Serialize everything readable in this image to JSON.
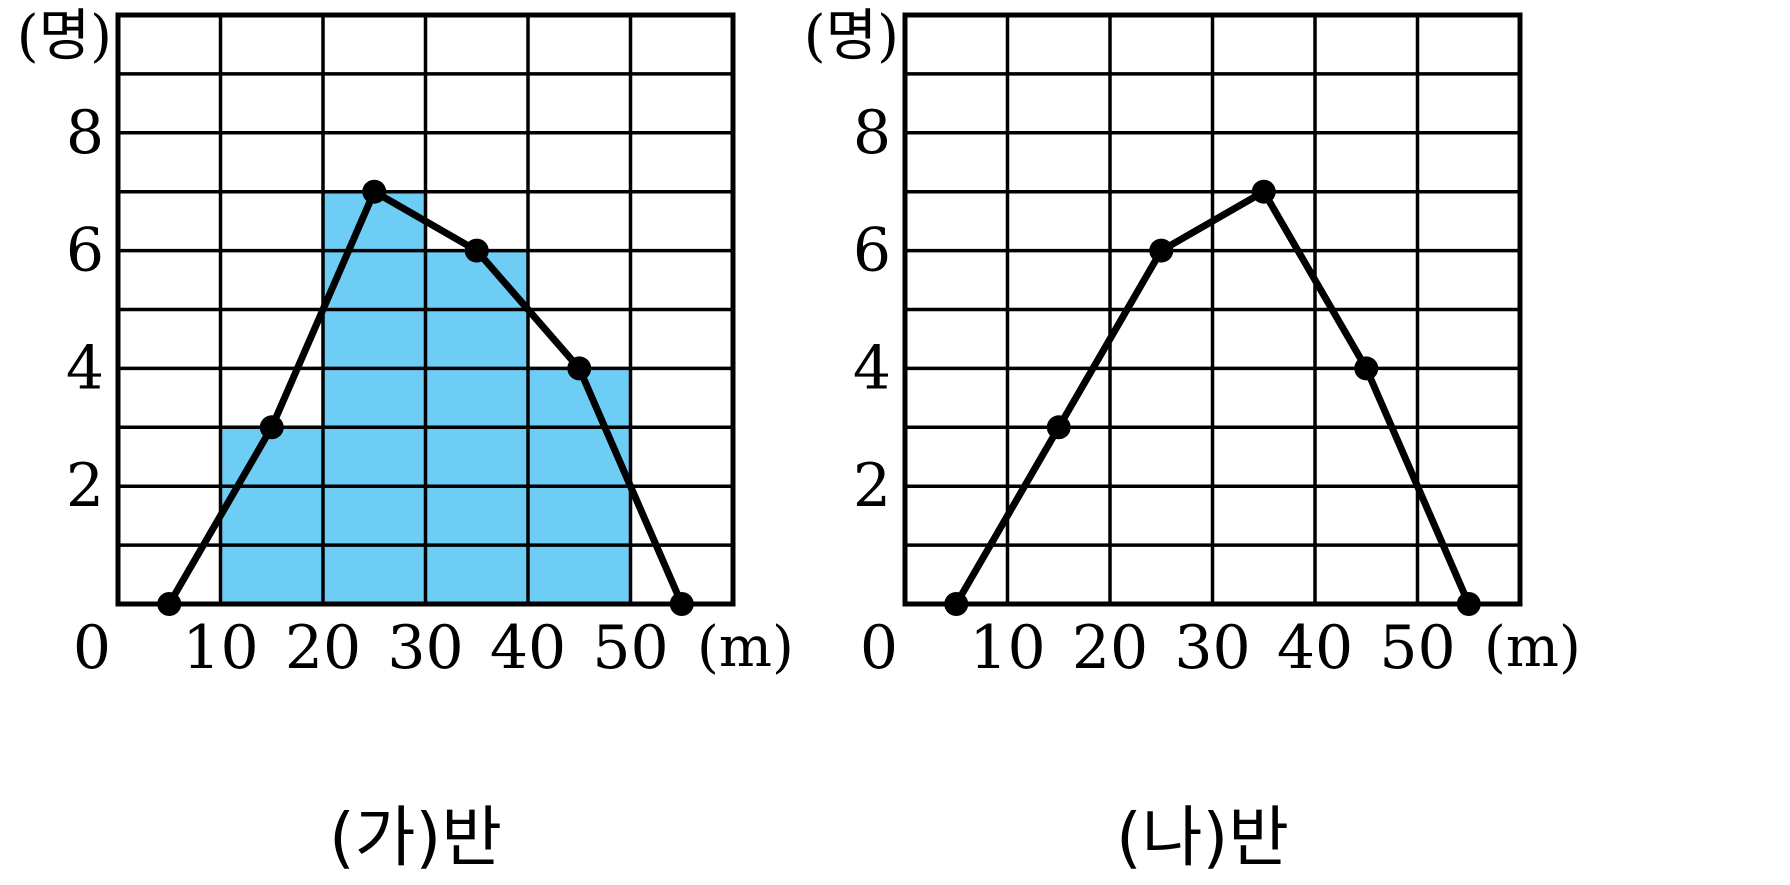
{
  "chart_data": [
    {
      "type": "histogram-with-frequency-polygon",
      "caption": "(가)반",
      "x_unit": "(m)",
      "y_unit": "(명)",
      "x_ticks": [
        "0",
        "10",
        "20",
        "30",
        "40",
        "50"
      ],
      "y_ticks": [
        "2",
        "4",
        "6",
        "8"
      ],
      "xlim": [
        0,
        60
      ],
      "ylim": [
        0,
        10
      ],
      "grid": true,
      "histogram": {
        "bins": [
          [
            10,
            20
          ],
          [
            20,
            30
          ],
          [
            30,
            40
          ],
          [
            40,
            50
          ]
        ],
        "values": [
          3,
          7,
          6,
          4
        ],
        "color": "#6ecdf4"
      },
      "polygon": {
        "x": [
          5,
          15,
          25,
          35,
          45,
          55
        ],
        "y": [
          0,
          3,
          7,
          6,
          4,
          0
        ],
        "color": "#000000"
      }
    },
    {
      "type": "frequency-polygon",
      "caption": "(나)반",
      "x_unit": "(m)",
      "y_unit": "(명)",
      "x_ticks": [
        "0",
        "10",
        "20",
        "30",
        "40",
        "50"
      ],
      "y_ticks": [
        "2",
        "4",
        "6",
        "8"
      ],
      "xlim": [
        0,
        60
      ],
      "ylim": [
        0,
        10
      ],
      "grid": true,
      "polygon": {
        "x": [
          5,
          15,
          25,
          35,
          45,
          55
        ],
        "y": [
          0,
          3,
          6,
          7,
          4,
          0
        ],
        "color": "#000000"
      }
    }
  ]
}
